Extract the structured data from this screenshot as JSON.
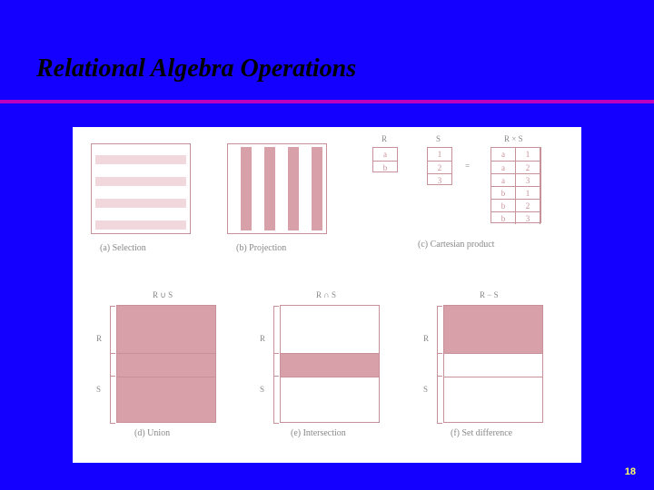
{
  "colors": {
    "slide_bg": "#1400ff",
    "title_text": "#000000",
    "underline": "#c000c0",
    "figure_bg": "#ffffff",
    "box_border": "#c89098",
    "fill": "#d8a0a8",
    "light_fill": "#f0d8dc",
    "caption_text": "#888888",
    "pagenum": "#ffff66"
  },
  "title": {
    "text": "Relational Algebra Operations",
    "fontsize": 28
  },
  "pagenum": "18",
  "panel_a": {
    "caption": "(a) Selection"
  },
  "panel_b": {
    "caption": "(b) Projection"
  },
  "panel_c": {
    "caption": "(c) Cartesian product",
    "R_label": "R",
    "S_label": "S",
    "RS_label": "R × S",
    "eq": "=",
    "R_rows": [
      "a",
      "b"
    ],
    "S_rows": [
      "1",
      "2",
      "3"
    ],
    "RS_rows": [
      [
        "a",
        "1"
      ],
      [
        "a",
        "2"
      ],
      [
        "a",
        "3"
      ],
      [
        "b",
        "1"
      ],
      [
        "b",
        "2"
      ],
      [
        "b",
        "3"
      ]
    ]
  },
  "panel_d": {
    "caption": "(d) Union",
    "title": "R ∪ S",
    "R": "R",
    "S": "S"
  },
  "panel_e": {
    "caption": "(e) Intersection",
    "title": "R ∩ S",
    "R": "R",
    "S": "S"
  },
  "panel_f": {
    "caption": "(f) Set difference",
    "title": "R − S",
    "R": "R",
    "S": "S"
  }
}
